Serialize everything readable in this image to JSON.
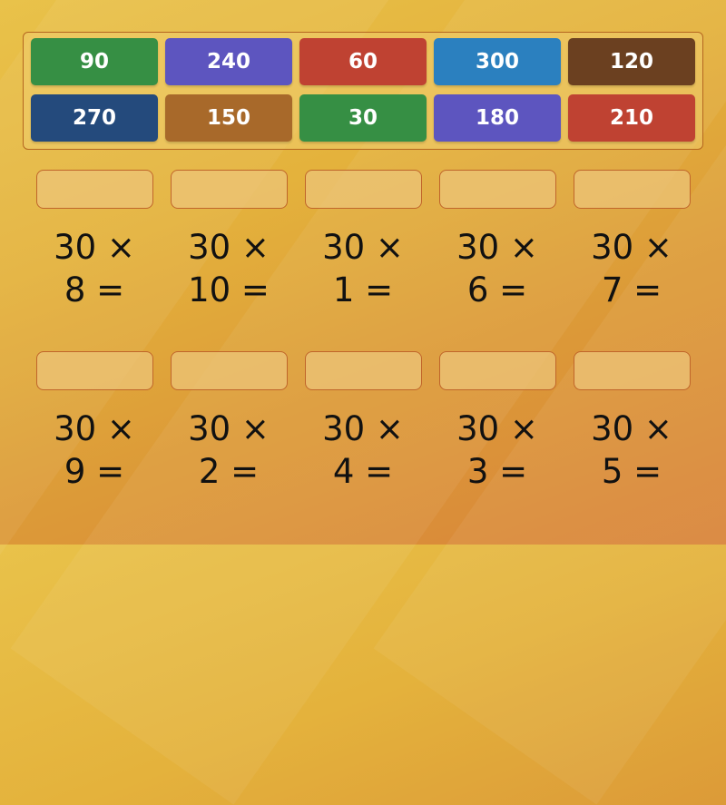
{
  "tiles": [
    {
      "label": "90",
      "color": "#368f44"
    },
    {
      "label": "240",
      "color": "#5d55bf"
    },
    {
      "label": "60",
      "color": "#bf4232"
    },
    {
      "label": "300",
      "color": "#2b80bf"
    },
    {
      "label": "120",
      "color": "#6b4020"
    },
    {
      "label": "270",
      "color": "#244a7c"
    },
    {
      "label": "150",
      "color": "#a8692a"
    },
    {
      "label": "30",
      "color": "#368f44"
    },
    {
      "label": "180",
      "color": "#5d55bf"
    },
    {
      "label": "210",
      "color": "#bf4232"
    }
  ],
  "questions": [
    {
      "line1": "30 ×",
      "line2": "8 ="
    },
    {
      "line1": "30 ×",
      "line2": "10 ="
    },
    {
      "line1": "30 ×",
      "line2": "1 ="
    },
    {
      "line1": "30 ×",
      "line2": "6 ="
    },
    {
      "line1": "30 ×",
      "line2": "7 ="
    },
    {
      "line1": "30 ×",
      "line2": "9 ="
    },
    {
      "line1": "30 ×",
      "line2": "2 ="
    },
    {
      "line1": "30 ×",
      "line2": "4 ="
    },
    {
      "line1": "30 ×",
      "line2": "3 ="
    },
    {
      "line1": "30 ×",
      "line2": "5 ="
    }
  ]
}
